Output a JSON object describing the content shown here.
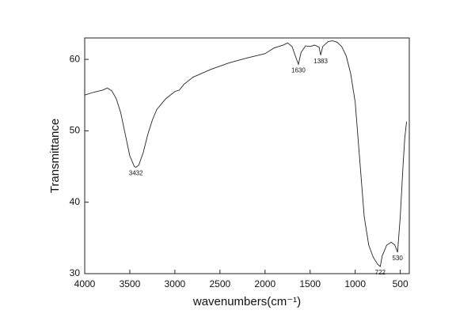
{
  "chart_data": {
    "type": "line",
    "x": [
      4000,
      3900,
      3800,
      3750,
      3700,
      3650,
      3600,
      3550,
      3500,
      3450,
      3432,
      3400,
      3350,
      3300,
      3250,
      3200,
      3100,
      3000,
      2950,
      2900,
      2800,
      2600,
      2400,
      2200,
      2000,
      1900,
      1800,
      1750,
      1700,
      1650,
      1630,
      1600,
      1550,
      1500,
      1450,
      1400,
      1383,
      1360,
      1300,
      1250,
      1200,
      1150,
      1100,
      1050,
      1000,
      950,
      900,
      850,
      800,
      750,
      722,
      700,
      650,
      600,
      560,
      530,
      500,
      470,
      450,
      430
    ],
    "values": [
      55.0,
      55.4,
      55.7,
      56.0,
      55.6,
      54.5,
      52.5,
      49.5,
      46.5,
      45.0,
      44.9,
      45.2,
      47.0,
      49.5,
      51.5,
      53.0,
      54.5,
      55.5,
      55.7,
      56.5,
      57.5,
      58.6,
      59.5,
      60.2,
      60.8,
      61.6,
      62.0,
      62.3,
      61.8,
      60.0,
      59.3,
      61.0,
      61.9,
      61.8,
      62.0,
      61.7,
      60.6,
      61.8,
      62.5,
      62.6,
      62.4,
      61.8,
      60.5,
      58.0,
      54.0,
      46.0,
      38.0,
      34.0,
      32.3,
      31.3,
      31.0,
      32.5,
      34.0,
      34.4,
      34.0,
      33.0,
      38.0,
      45.0,
      49.0,
      51.3
    ],
    "color": "#222222",
    "xlabel": "wavenumbers(cm⁻¹)",
    "ylabel": "Transmittance",
    "xlim": [
      4000,
      400
    ],
    "xticks": [
      4000,
      3500,
      3000,
      2500,
      2000,
      1500,
      1000,
      500
    ],
    "ylim": [
      30,
      63
    ],
    "yticks": [
      30,
      40,
      50,
      60
    ],
    "grid": false,
    "annotations": [
      {
        "text": "3432",
        "x": 3432,
        "y": 44.9
      },
      {
        "text": "1630",
        "x": 1630,
        "y": 59.3
      },
      {
        "text": "1383",
        "x": 1383,
        "y": 60.6
      },
      {
        "text": "722",
        "x": 722,
        "y": 31.0
      },
      {
        "text": "530",
        "x": 530,
        "y": 33.0
      }
    ]
  }
}
